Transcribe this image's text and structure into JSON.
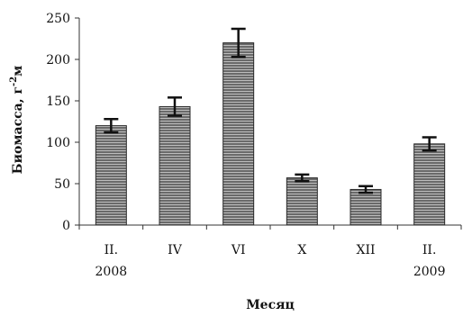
{
  "chart_data": {
    "type": "bar",
    "categories": [
      [
        "II.",
        "2008"
      ],
      [
        "IV"
      ],
      [
        "VI"
      ],
      [
        "X"
      ],
      [
        "XII"
      ],
      [
        "II.",
        "2009"
      ]
    ],
    "series": [
      {
        "values": [
          120,
          143,
          220,
          57,
          43,
          98
        ],
        "errors": [
          8,
          11,
          17,
          4,
          4,
          8
        ]
      }
    ],
    "title": "",
    "xlabel": "Месяц",
    "ylabel": "Биомасса, г м⁻²",
    "ylabel_main": "Биомасса, г",
    "ylabel_exp": "-2",
    "ylabel_unit": "м",
    "ylim": [
      0,
      250
    ],
    "yticks": [
      0,
      50,
      100,
      150,
      200,
      250
    ],
    "grid": false,
    "legend": "none",
    "colors": {
      "bar_fill": "#6a6a6a",
      "bar_stripe": "#bdbdbd",
      "bar_stroke": "#2a2a2a",
      "axis": "#333333",
      "error_bar": "#111111"
    }
  }
}
